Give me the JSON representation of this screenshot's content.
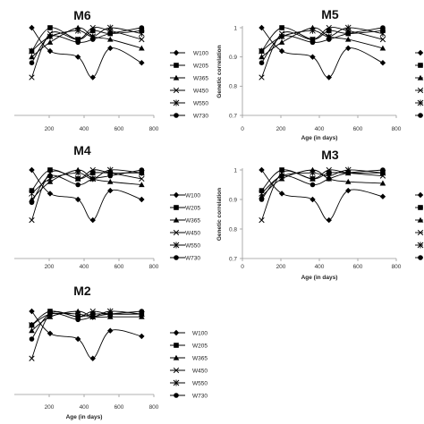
{
  "legend_labels": [
    "W100",
    "W205",
    "W365",
    "W450",
    "W550",
    "W730"
  ],
  "chart_data": [
    {
      "type": "line",
      "title": "M6",
      "xlabel": "",
      "ylabel": "",
      "xlim": [
        0,
        800
      ],
      "ylim": [
        0.7,
        1.0
      ],
      "x": [
        100,
        205,
        365,
        450,
        550,
        730
      ],
      "x_ticks": [
        "200",
        "400",
        "600",
        "800"
      ],
      "y_ticks": [],
      "series": [
        {
          "name": "W100",
          "marker": "diamond",
          "values": [
            1.0,
            0.92,
            0.9,
            0.83,
            0.93,
            0.88
          ]
        },
        {
          "name": "W205",
          "marker": "square",
          "values": [
            0.92,
            1.0,
            0.96,
            0.99,
            0.98,
            0.99
          ]
        },
        {
          "name": "W365",
          "marker": "triangle",
          "values": [
            0.9,
            0.95,
            1.0,
            0.97,
            0.96,
            0.93
          ]
        },
        {
          "name": "W450",
          "marker": "x",
          "values": [
            0.83,
            0.98,
            0.96,
            1.0,
            0.99,
            0.96
          ]
        },
        {
          "name": "W550",
          "marker": "star",
          "values": [
            0.92,
            0.97,
            0.99,
            0.97,
            1.0,
            0.98
          ]
        },
        {
          "name": "W730",
          "marker": "circle",
          "values": [
            0.88,
            0.97,
            0.95,
            0.96,
            0.98,
            1.0
          ]
        }
      ]
    },
    {
      "type": "line",
      "title": "M5",
      "xlabel": "Age (in days)",
      "ylabel": "Genetic correlation",
      "xlim": [
        0,
        800
      ],
      "ylim": [
        0.7,
        1.0
      ],
      "x": [
        100,
        205,
        365,
        450,
        550,
        730
      ],
      "x_ticks": [
        "0",
        "200",
        "400",
        "600",
        "800"
      ],
      "y_ticks": [
        "0.7",
        "0.8",
        "0.9",
        "1"
      ],
      "series": [
        {
          "name": "W100",
          "marker": "diamond",
          "values": [
            1.0,
            0.92,
            0.9,
            0.83,
            0.93,
            0.88
          ]
        },
        {
          "name": "W205",
          "marker": "square",
          "values": [
            0.92,
            1.0,
            0.96,
            0.99,
            0.98,
            0.99
          ]
        },
        {
          "name": "W365",
          "marker": "triangle",
          "values": [
            0.9,
            0.95,
            1.0,
            0.97,
            0.96,
            0.93
          ]
        },
        {
          "name": "W450",
          "marker": "x",
          "values": [
            0.83,
            0.98,
            0.96,
            1.0,
            0.99,
            0.96
          ]
        },
        {
          "name": "W550",
          "marker": "star",
          "values": [
            0.92,
            0.97,
            0.99,
            0.97,
            1.0,
            0.98
          ]
        },
        {
          "name": "W730",
          "marker": "circle",
          "values": [
            0.88,
            0.97,
            0.95,
            0.96,
            0.98,
            1.0
          ]
        }
      ]
    },
    {
      "type": "line",
      "title": "M4",
      "xlabel": "",
      "ylabel": "",
      "xlim": [
        0,
        800
      ],
      "ylim": [
        0.7,
        1.0
      ],
      "x": [
        100,
        205,
        365,
        450,
        550,
        730
      ],
      "x_ticks": [
        "200",
        "400",
        "600",
        "800"
      ],
      "y_ticks": [],
      "series": [
        {
          "name": "W100",
          "marker": "diamond",
          "values": [
            1.0,
            0.92,
            0.9,
            0.83,
            0.93,
            0.9
          ]
        },
        {
          "name": "W205",
          "marker": "square",
          "values": [
            0.93,
            1.0,
            0.97,
            0.99,
            0.99,
            0.99
          ]
        },
        {
          "name": "W365",
          "marker": "triangle",
          "values": [
            0.9,
            0.96,
            1.0,
            0.97,
            0.96,
            0.95
          ]
        },
        {
          "name": "W450",
          "marker": "x",
          "values": [
            0.83,
            0.99,
            0.97,
            1.0,
            0.99,
            0.97
          ]
        },
        {
          "name": "W550",
          "marker": "star",
          "values": [
            0.92,
            0.97,
            0.99,
            0.97,
            1.0,
            0.99
          ]
        },
        {
          "name": "W730",
          "marker": "circle",
          "values": [
            0.89,
            0.98,
            0.95,
            0.97,
            0.98,
            1.0
          ]
        }
      ]
    },
    {
      "type": "line",
      "title": "M3",
      "xlabel": "Age (in days)",
      "ylabel": "Genetic correlation",
      "xlim": [
        0,
        800
      ],
      "ylim": [
        0.7,
        1.0
      ],
      "x": [
        100,
        205,
        365,
        450,
        550,
        730
      ],
      "x_ticks": [
        "0",
        "200",
        "400",
        "600",
        "800"
      ],
      "y_ticks": [
        "0.7",
        "0.8",
        "0.9",
        "1"
      ],
      "series": [
        {
          "name": "W100",
          "marker": "diamond",
          "values": [
            1.0,
            0.92,
            0.9,
            0.83,
            0.93,
            0.91
          ]
        },
        {
          "name": "W205",
          "marker": "square",
          "values": [
            0.93,
            1.0,
            0.97,
            0.99,
            0.99,
            0.99
          ]
        },
        {
          "name": "W365",
          "marker": "triangle",
          "values": [
            0.91,
            0.97,
            1.0,
            0.97,
            0.96,
            0.955
          ]
        },
        {
          "name": "W450",
          "marker": "x",
          "values": [
            0.83,
            0.99,
            0.97,
            1.0,
            0.99,
            0.98
          ]
        },
        {
          "name": "W550",
          "marker": "star",
          "values": [
            0.92,
            0.98,
            0.99,
            0.98,
            1.0,
            0.99
          ]
        },
        {
          "name": "W730",
          "marker": "circle",
          "values": [
            0.9,
            0.98,
            0.95,
            0.97,
            0.99,
            1.0
          ]
        }
      ]
    },
    {
      "type": "line",
      "title": "M2",
      "xlabel": "Age (in days)",
      "ylabel": "",
      "xlim": [
        0,
        800
      ],
      "ylim": [
        0.7,
        1.0
      ],
      "x": [
        100,
        205,
        365,
        450,
        550,
        730
      ],
      "x_ticks": [
        "200",
        "400",
        "600",
        "800"
      ],
      "y_ticks": [],
      "series": [
        {
          "name": "W100",
          "marker": "diamond",
          "values": [
            1.0,
            0.92,
            0.9,
            0.83,
            0.93,
            0.91
          ]
        },
        {
          "name": "W205",
          "marker": "square",
          "values": [
            0.95,
            1.0,
            0.98,
            0.99,
            0.99,
            0.99
          ]
        },
        {
          "name": "W365",
          "marker": "triangle",
          "values": [
            0.93,
            0.98,
            1.0,
            0.98,
            0.98,
            0.98
          ]
        },
        {
          "name": "W450",
          "marker": "x",
          "values": [
            0.83,
            0.99,
            0.98,
            1.0,
            0.99,
            0.99
          ]
        },
        {
          "name": "W550",
          "marker": "star",
          "values": [
            0.95,
            0.99,
            0.99,
            0.98,
            1.0,
            0.99
          ]
        },
        {
          "name": "W730",
          "marker": "circle",
          "values": [
            0.9,
            0.99,
            0.97,
            0.98,
            0.99,
            1.0
          ]
        }
      ]
    }
  ]
}
